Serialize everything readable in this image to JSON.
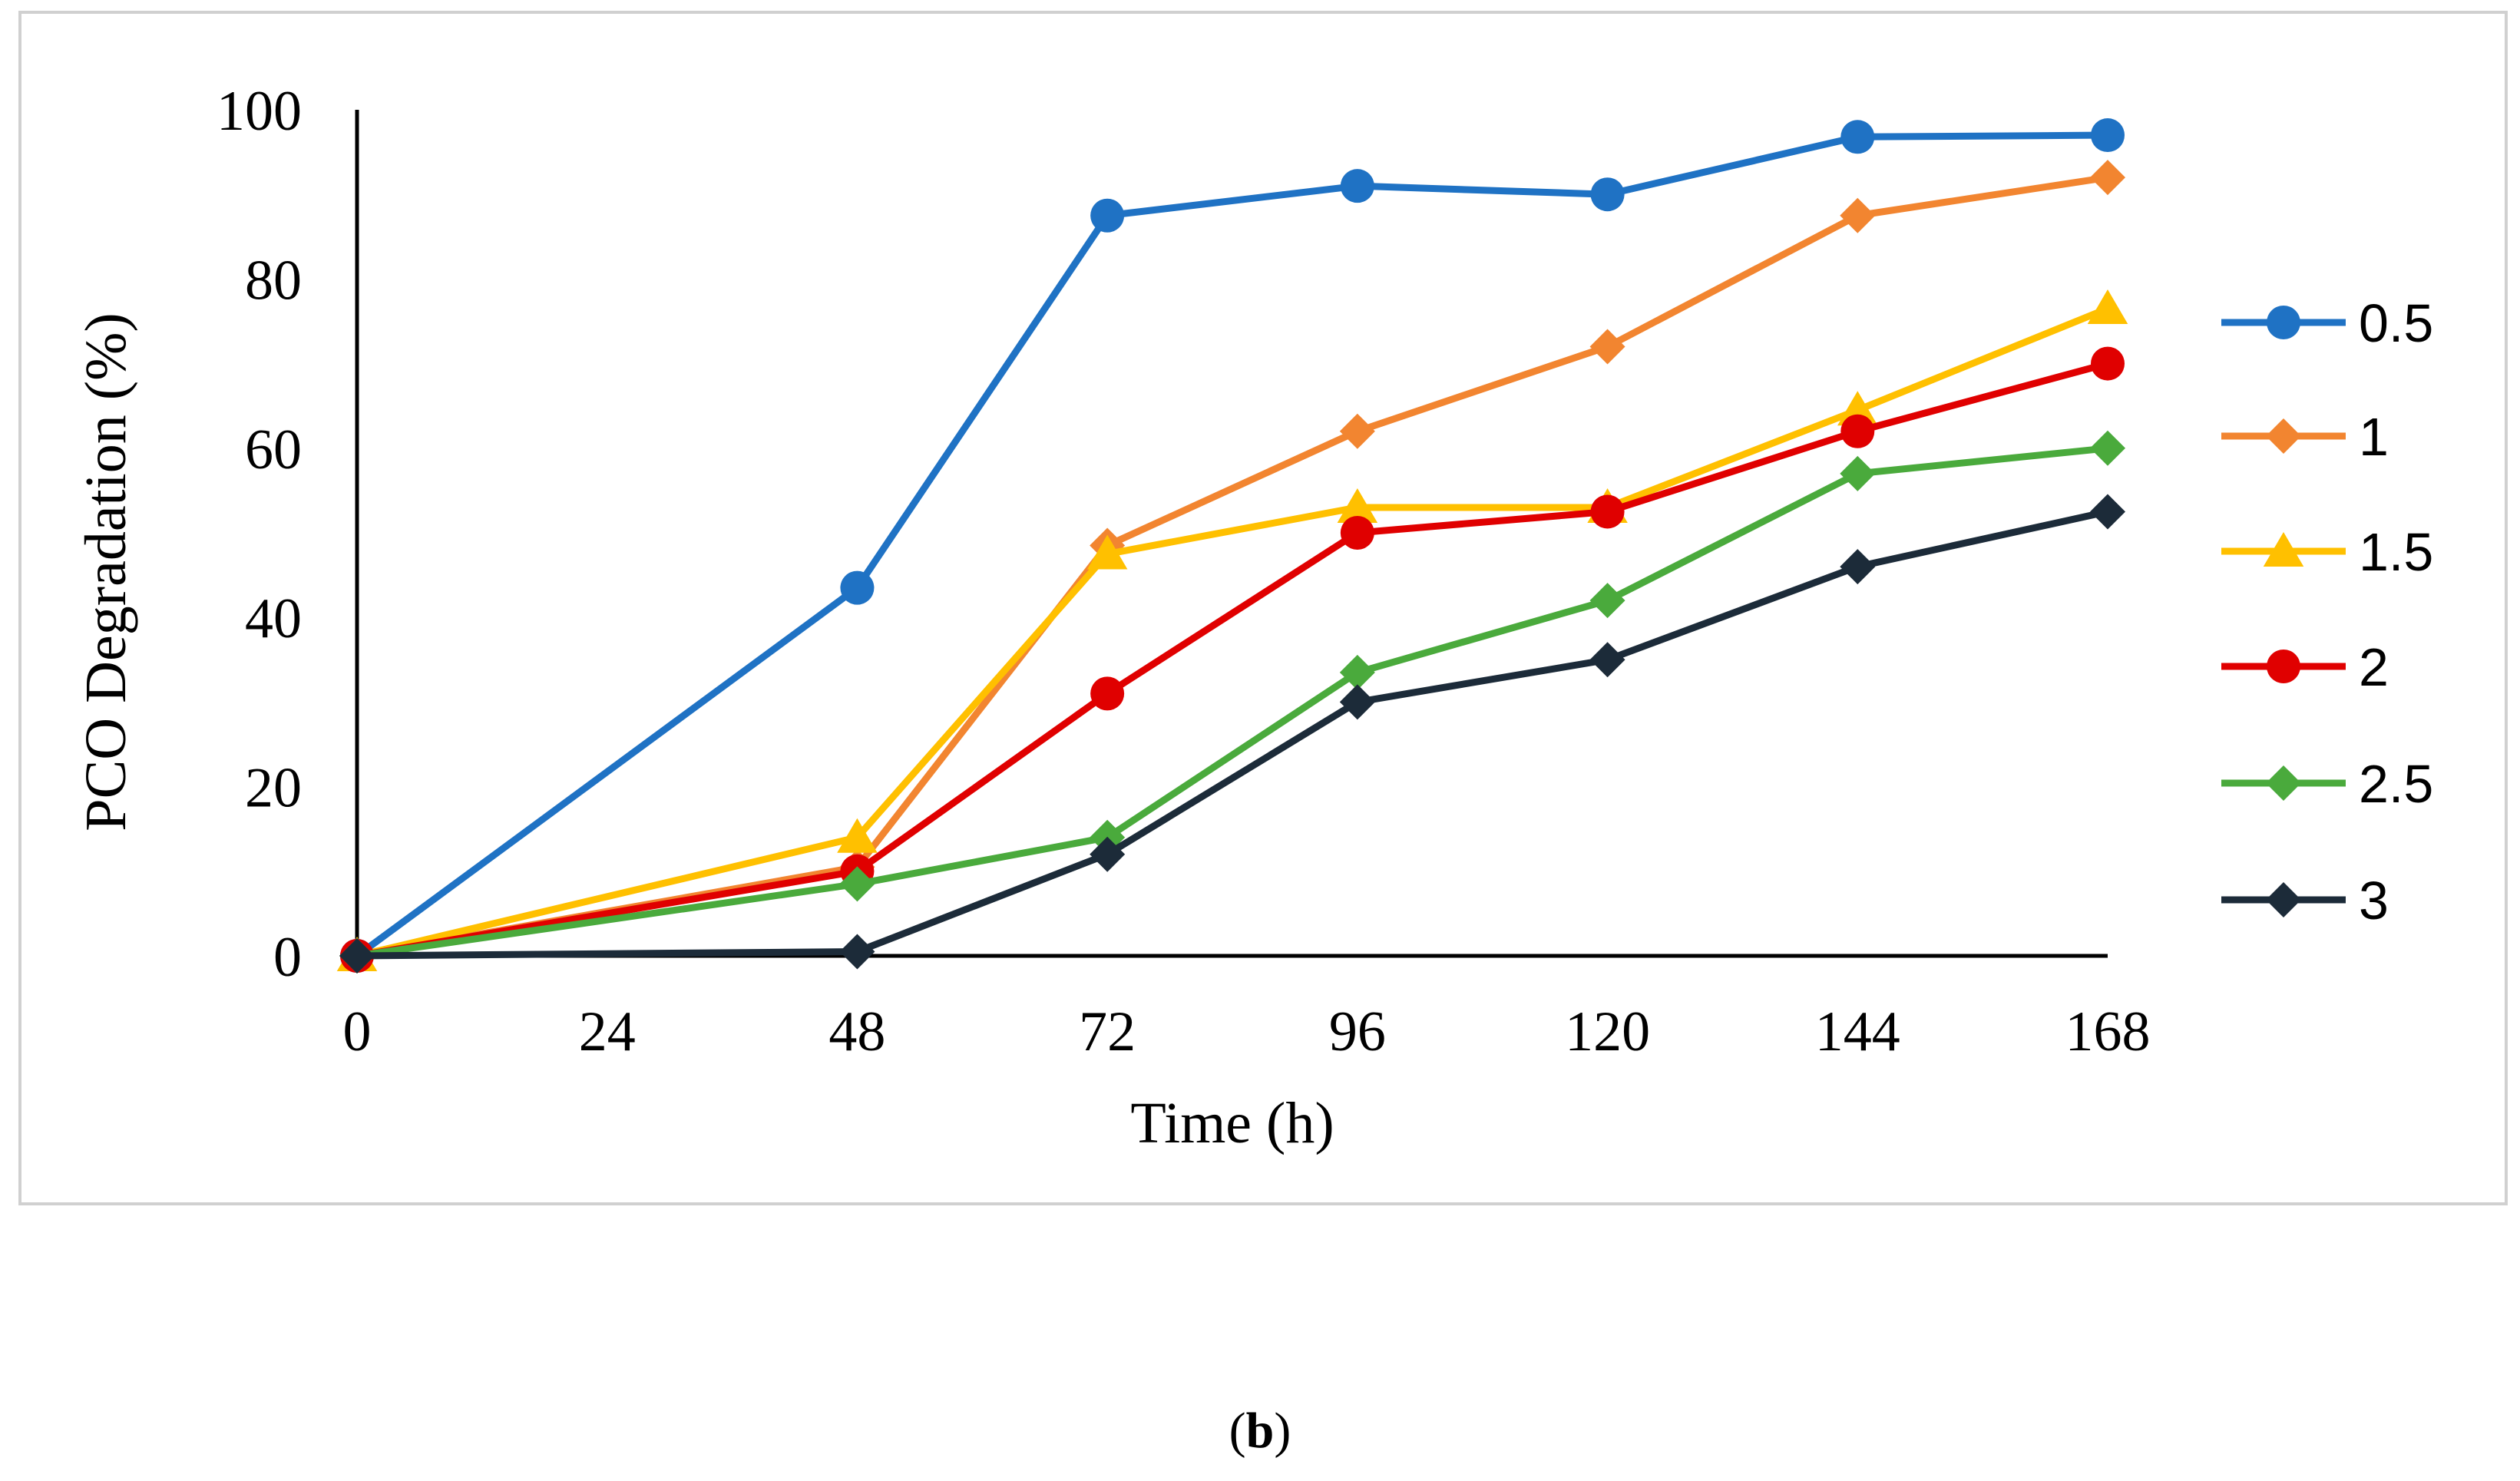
{
  "chart_data": {
    "type": "line",
    "title": "",
    "xlabel": "Time (h)",
    "ylabel": "PCO Degradation (%)",
    "x": [
      0,
      48,
      72,
      96,
      120,
      144,
      168
    ],
    "xticks": [
      0,
      24,
      48,
      72,
      96,
      120,
      144,
      168
    ],
    "xlim": [
      0,
      168
    ],
    "yticks": [
      0,
      20,
      40,
      60,
      80,
      100
    ],
    "ylim": [
      0,
      100
    ],
    "grid": false,
    "legend_position": "right",
    "series": [
      {
        "name": "0.5",
        "color": "#1F72C4",
        "marker": "circle",
        "values": [
          0,
          43.5,
          87.5,
          91,
          90,
          96.8,
          97
        ]
      },
      {
        "name": "1",
        "color": "#F28530",
        "marker": "diamond",
        "values": [
          0,
          10.5,
          48.5,
          62,
          72,
          87.5,
          92
        ]
      },
      {
        "name": "1.5",
        "color": "#FFC000",
        "marker": "triangle",
        "values": [
          0,
          14,
          47.5,
          53,
          53,
          64.5,
          76.5
        ]
      },
      {
        "name": "2",
        "color": "#E00000",
        "marker": "circle",
        "values": [
          0,
          10,
          31,
          50,
          52.5,
          62,
          70
        ]
      },
      {
        "name": "2.5",
        "color": "#4AAA3C",
        "marker": "diamond",
        "values": [
          0,
          8.5,
          14,
          33.5,
          42,
          57,
          60
        ]
      },
      {
        "name": "3",
        "color": "#1C2B39",
        "marker": "diamond",
        "values": [
          0,
          0.5,
          12,
          30,
          35,
          46,
          52.5
        ]
      }
    ]
  },
  "caption": {
    "open": "(",
    "letter": "b",
    "close": ")"
  }
}
